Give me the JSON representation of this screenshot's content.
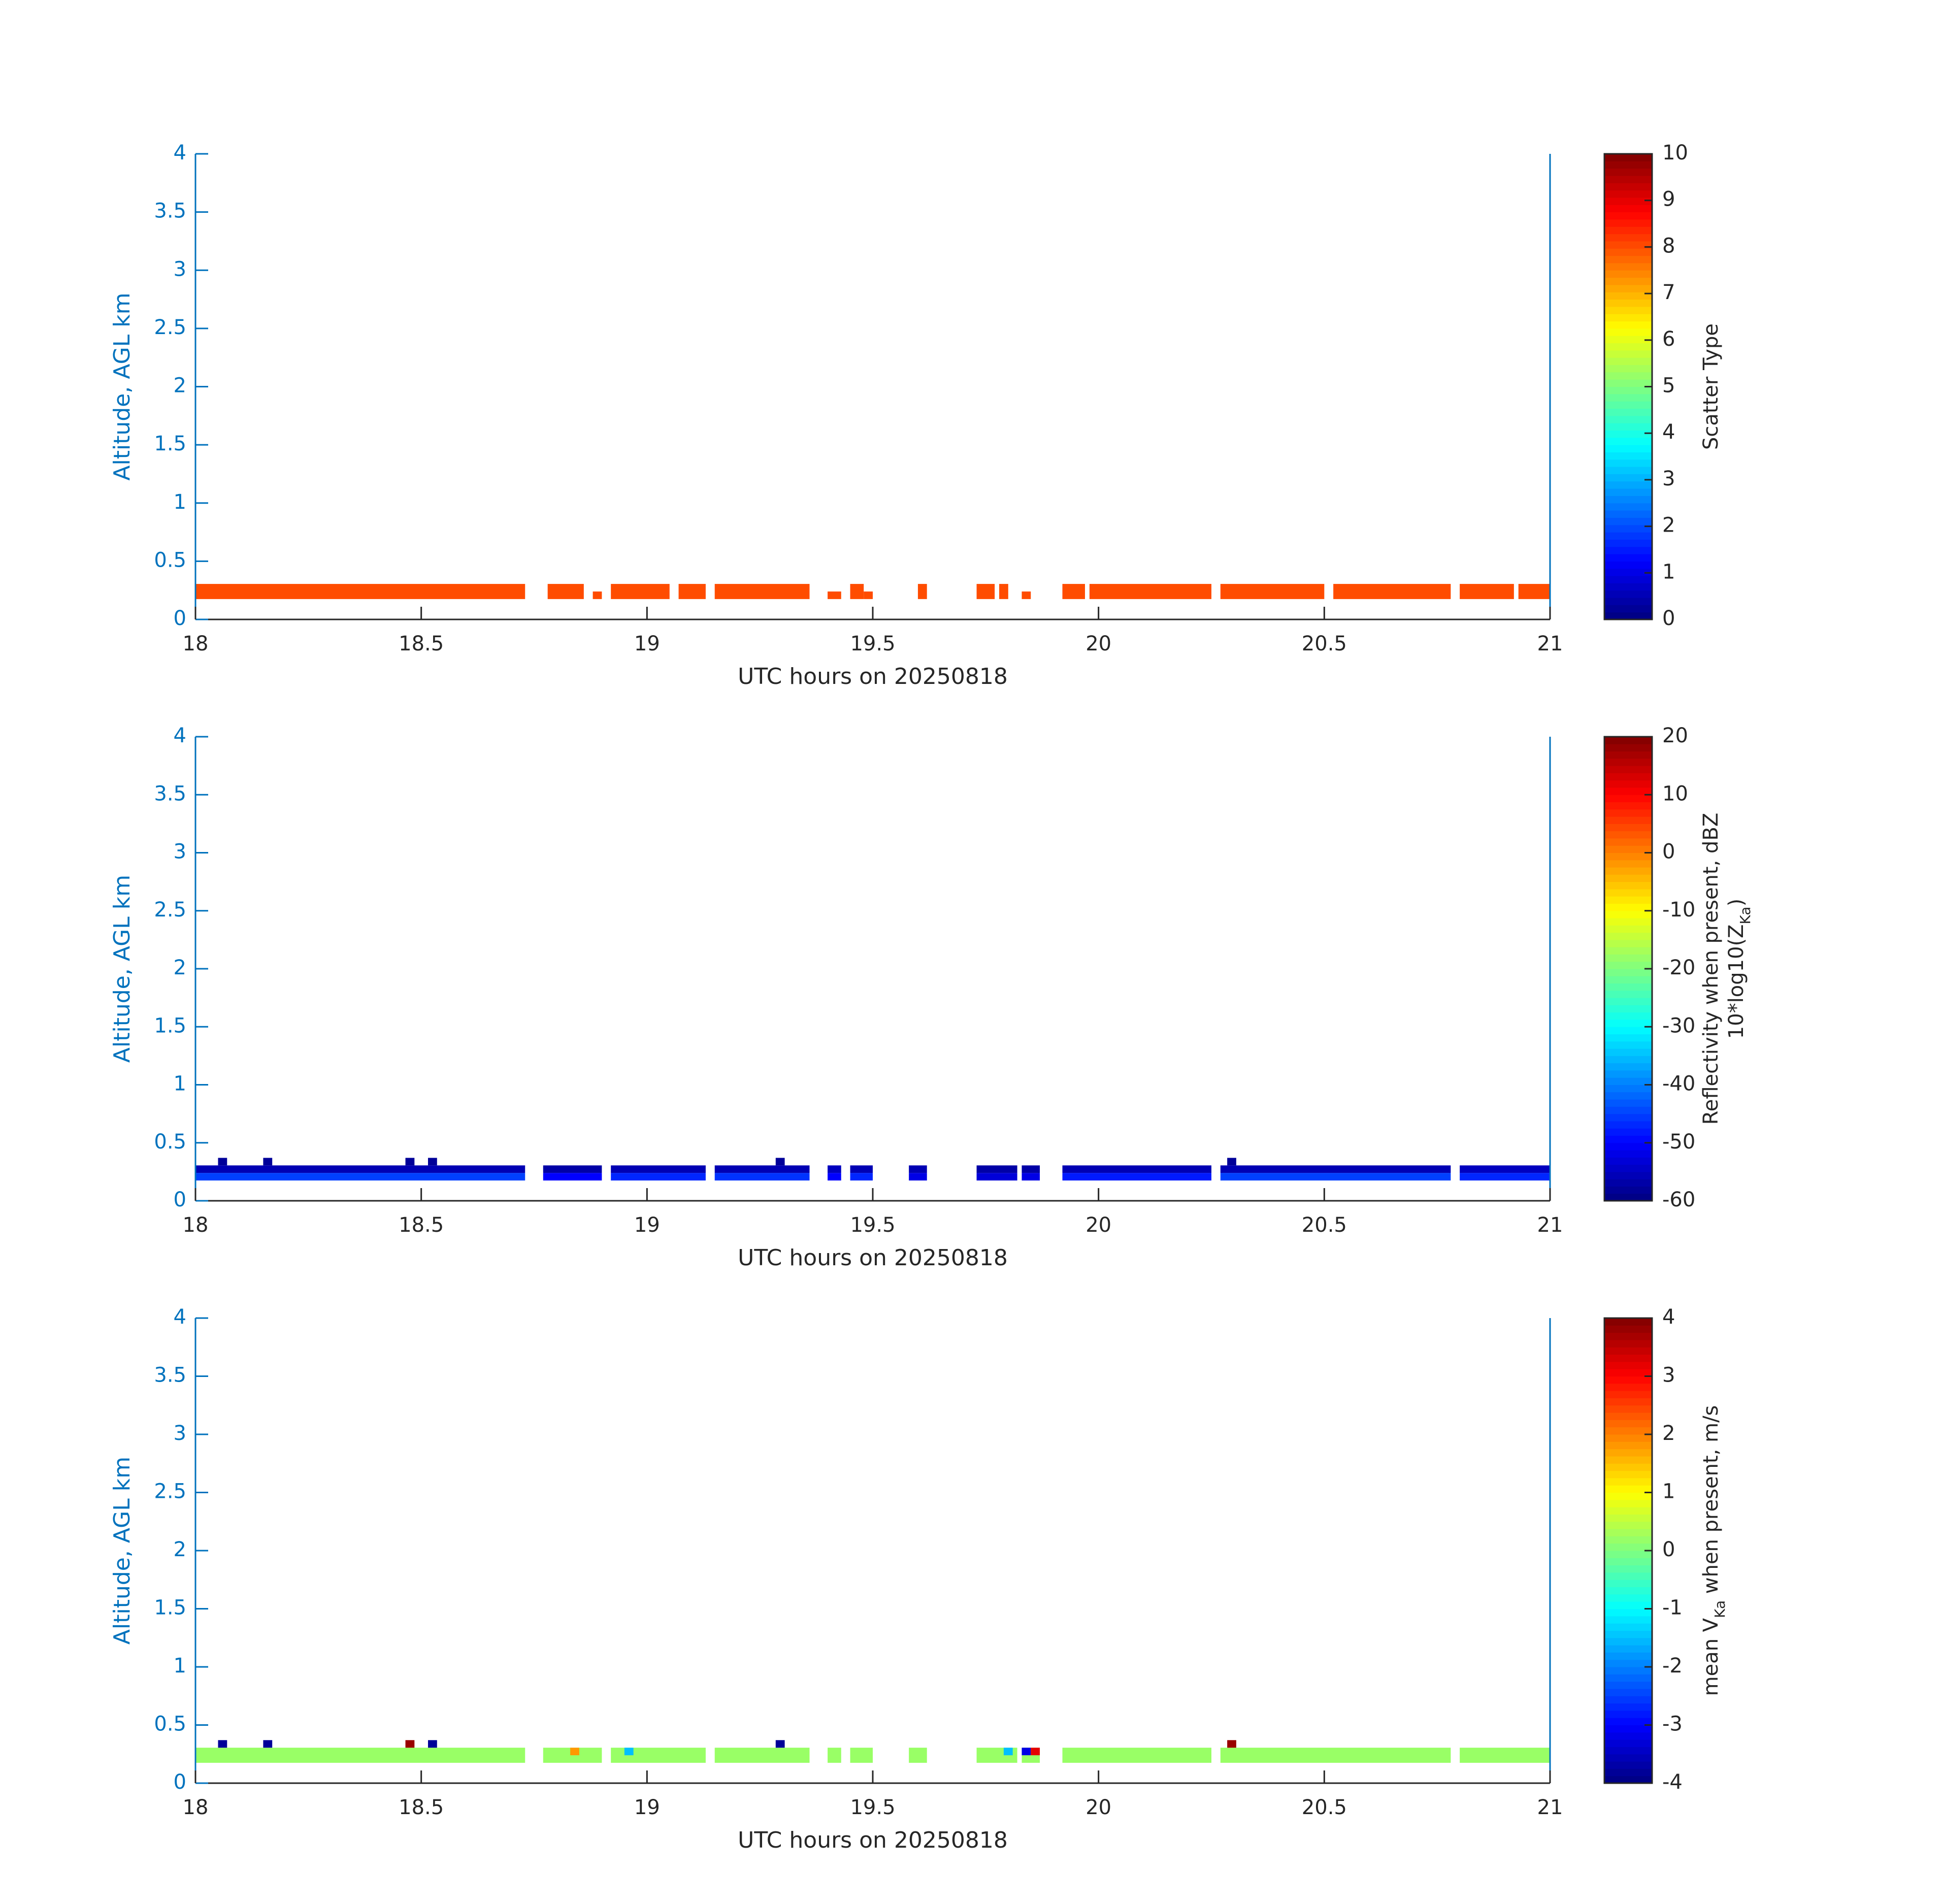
{
  "chart_data": [
    {
      "type": "heatmap",
      "xlabel": "UTC hours on 20250818",
      "ylabel": "Altitude, AGL km",
      "xlim": [
        18,
        21
      ],
      "xticks": [
        18,
        18.5,
        19,
        19.5,
        20,
        20.5,
        21
      ],
      "ylim": [
        0,
        4
      ],
      "yticks": [
        0,
        0.5,
        1,
        1.5,
        2,
        2.5,
        3,
        3.5,
        4
      ],
      "colormap": "jet",
      "colorbar": {
        "clim": [
          0,
          10
        ],
        "ticks": [
          0,
          1,
          2,
          3,
          4,
          5,
          6,
          7,
          8,
          9,
          10
        ],
        "label_lines": [
          [
            {
              "text": "Scatter Type"
            }
          ]
        ]
      },
      "cells": {
        "x0": [
          18.0,
          18.78,
          18.88,
          18.92,
          19.07,
          19.15,
          19.4,
          19.45,
          19.48,
          19.6,
          19.73,
          19.78,
          19.83,
          19.92,
          19.98,
          20.27,
          20.52,
          20.8,
          20.93
        ],
        "x1": [
          18.73,
          18.86,
          18.9,
          19.05,
          19.13,
          19.36,
          19.43,
          19.48,
          19.5,
          19.62,
          19.77,
          19.8,
          19.85,
          19.97,
          20.25,
          20.5,
          20.78,
          20.92,
          21.0
        ],
        "y0": [
          0.175,
          0.175,
          0.175,
          0.175,
          0.175,
          0.175,
          0.175,
          0.175,
          0.175,
          0.175,
          0.175,
          0.175,
          0.175,
          0.175,
          0.175,
          0.175,
          0.175,
          0.175,
          0.175
        ],
        "y1": [
          0.305,
          0.305,
          0.24,
          0.305,
          0.305,
          0.305,
          0.24,
          0.305,
          0.24,
          0.305,
          0.305,
          0.305,
          0.24,
          0.305,
          0.305,
          0.305,
          0.305,
          0.305,
          0.305
        ],
        "values": [
          8,
          8,
          8,
          8,
          8,
          8,
          8,
          8,
          8,
          8,
          8,
          8,
          8,
          8,
          8,
          8,
          8,
          8,
          8
        ]
      }
    },
    {
      "type": "heatmap",
      "xlabel": "UTC hours on 20250818",
      "ylabel": "Altitude, AGL km",
      "xlim": [
        18,
        21
      ],
      "xticks": [
        18,
        18.5,
        19,
        19.5,
        20,
        20.5,
        21
      ],
      "ylim": [
        0,
        4
      ],
      "yticks": [
        0,
        0.5,
        1,
        1.5,
        2,
        2.5,
        3,
        3.5,
        4
      ],
      "colormap": "jet",
      "colorbar": {
        "clim": [
          -60,
          20
        ],
        "ticks": [
          -60,
          -50,
          -40,
          -30,
          -20,
          -10,
          0,
          10,
          20
        ],
        "label_lines": [
          [
            {
              "text": "Reflectivity when present, dBZ"
            }
          ],
          [
            {
              "text": "10*log10(Z"
            },
            {
              "text": "Ka",
              "sub": true
            },
            {
              "text": ")"
            }
          ]
        ]
      },
      "cells": {
        "x0": [
          18.0,
          18.77,
          18.92,
          19.15,
          19.4,
          19.45,
          19.58,
          19.73,
          19.83,
          19.92,
          20.27,
          20.8,
          18.0,
          18.77,
          18.92,
          19.15,
          19.4,
          19.45,
          19.58,
          19.73,
          19.83,
          19.92,
          20.27,
          20.8,
          18.05,
          18.15,
          18.465,
          18.515,
          19.285,
          20.285
        ],
        "x1": [
          18.73,
          18.9,
          19.13,
          19.36,
          19.43,
          19.5,
          19.62,
          19.82,
          19.87,
          20.25,
          20.78,
          21.0,
          18.73,
          18.9,
          19.13,
          19.36,
          19.43,
          19.5,
          19.62,
          19.82,
          19.87,
          20.25,
          20.78,
          21.0,
          18.07,
          18.17,
          18.485,
          18.535,
          19.305,
          20.305
        ],
        "y0": [
          0.175,
          0.175,
          0.175,
          0.175,
          0.175,
          0.175,
          0.175,
          0.175,
          0.175,
          0.175,
          0.175,
          0.175,
          0.24,
          0.24,
          0.24,
          0.24,
          0.24,
          0.24,
          0.24,
          0.24,
          0.24,
          0.24,
          0.24,
          0.24,
          0.305,
          0.305,
          0.305,
          0.305,
          0.305,
          0.305
        ],
        "y1": [
          0.24,
          0.24,
          0.24,
          0.24,
          0.24,
          0.24,
          0.24,
          0.24,
          0.24,
          0.24,
          0.24,
          0.24,
          0.305,
          0.305,
          0.305,
          0.305,
          0.305,
          0.305,
          0.305,
          0.305,
          0.305,
          0.305,
          0.305,
          0.305,
          0.37,
          0.37,
          0.37,
          0.37,
          0.37,
          0.37
        ],
        "values": [
          -45,
          -50,
          -47,
          -46,
          -50,
          -47,
          -52,
          -53,
          -52,
          -48,
          -45,
          -47,
          -56,
          -57,
          -56,
          -56,
          -55,
          -56,
          -56,
          -57,
          -57,
          -56,
          -56,
          -55,
          -58,
          -58,
          -58,
          -58,
          -58,
          -58
        ]
      }
    },
    {
      "type": "heatmap",
      "xlabel": "UTC hours on 20250818",
      "ylabel": "Altitude, AGL km",
      "xlim": [
        18,
        21
      ],
      "xticks": [
        18,
        18.5,
        19,
        19.5,
        20,
        20.5,
        21
      ],
      "ylim": [
        0,
        4
      ],
      "yticks": [
        0,
        0.5,
        1,
        1.5,
        2,
        2.5,
        3,
        3.5,
        4
      ],
      "colormap": "jet",
      "colorbar": {
        "clim": [
          -4,
          4
        ],
        "ticks": [
          -4,
          -3,
          -2,
          -1,
          0,
          1,
          2,
          3,
          4
        ],
        "label_lines": [
          [
            {
              "text": "mean V"
            },
            {
              "text": "Ka",
              "sub": true
            },
            {
              "text": " when present, m/s"
            }
          ]
        ]
      },
      "cells": {
        "x0": [
          18.0,
          18.77,
          18.92,
          19.15,
          19.4,
          19.45,
          19.58,
          19.73,
          19.83,
          19.92,
          20.27,
          20.8,
          18.05,
          18.15,
          18.465,
          18.515,
          19.285,
          20.285,
          18.83,
          18.95,
          19.79,
          19.83,
          19.85
        ],
        "x1": [
          18.73,
          18.9,
          19.13,
          19.36,
          19.43,
          19.5,
          19.62,
          19.82,
          19.87,
          20.25,
          20.78,
          21.0,
          18.07,
          18.17,
          18.485,
          18.535,
          19.305,
          20.305,
          18.85,
          18.97,
          19.81,
          19.85,
          19.87
        ],
        "y0": [
          0.175,
          0.175,
          0.175,
          0.175,
          0.175,
          0.175,
          0.175,
          0.175,
          0.175,
          0.175,
          0.175,
          0.175,
          0.305,
          0.305,
          0.305,
          0.305,
          0.305,
          0.305,
          0.24,
          0.24,
          0.24,
          0.24,
          0.24
        ],
        "y1": [
          0.305,
          0.305,
          0.305,
          0.305,
          0.305,
          0.305,
          0.305,
          0.305,
          0.305,
          0.305,
          0.305,
          0.305,
          0.37,
          0.37,
          0.37,
          0.37,
          0.37,
          0.37,
          0.305,
          0.305,
          0.305,
          0.305,
          0.305
        ],
        "values": [
          0.2,
          0.2,
          0.2,
          0.2,
          0.2,
          0.2,
          0.2,
          0.2,
          0.2,
          0.2,
          0.2,
          0.2,
          -3.8,
          -3.8,
          3.8,
          -3.8,
          -3.8,
          3.8,
          1.8,
          -1.5,
          -1.5,
          -3.2,
          3.2
        ]
      }
    }
  ]
}
